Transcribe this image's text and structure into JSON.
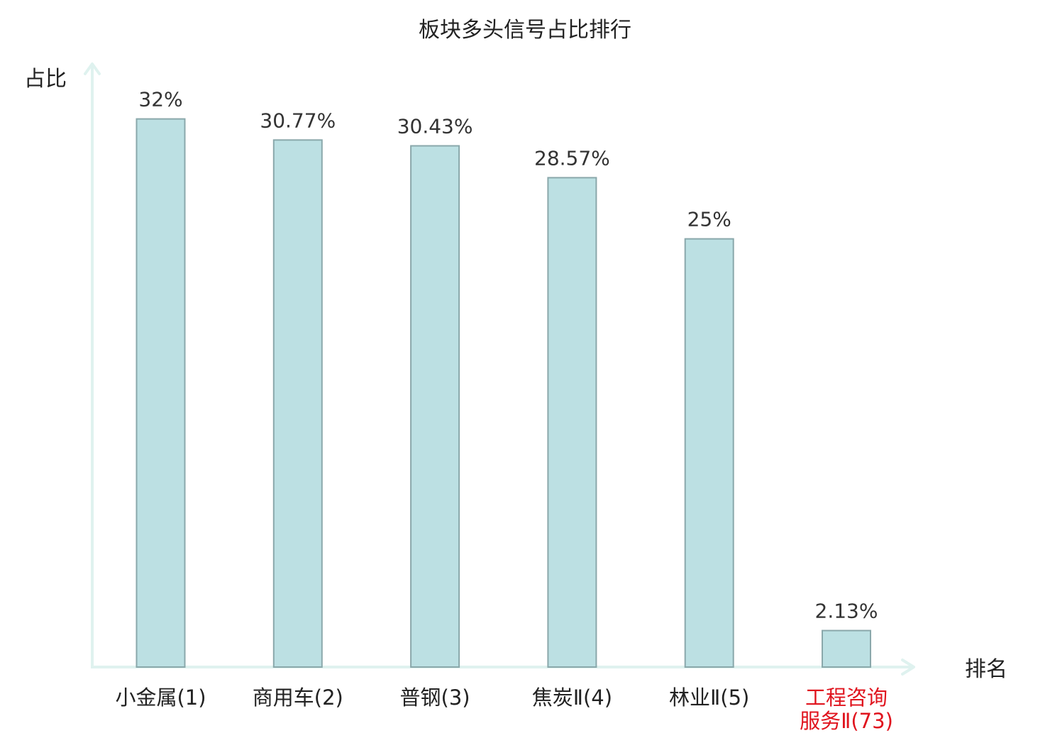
{
  "chart_data": {
    "type": "bar",
    "title": "板块多头信号占比排行",
    "ylabel": "占比",
    "xlabel": "排名",
    "categories": [
      "小金属(1)",
      "商用车(2)",
      "普钢(3)",
      "焦炭Ⅱ(4)",
      "林业Ⅱ(5)",
      "工程咨询服务Ⅱ(73)"
    ],
    "category_lines": [
      [
        "小金属(1)"
      ],
      [
        "商用车(2)"
      ],
      [
        "普钢(3)"
      ],
      [
        "焦炭Ⅱ(4)"
      ],
      [
        "林业Ⅱ(5)"
      ],
      [
        "工程咨询",
        "服务Ⅱ(73)"
      ]
    ],
    "values": [
      32,
      30.77,
      30.43,
      28.57,
      25,
      2.13
    ],
    "value_labels": [
      "32%",
      "30.77%",
      "30.43%",
      "28.57%",
      "25%",
      "2.13%"
    ],
    "highlight_index": 5,
    "ylim": [
      0,
      34.8
    ],
    "grid": false,
    "colors": {
      "bar_fill": "#bce0e3",
      "bar_stroke": "#8aa8ab",
      "axis": "#dff2ef",
      "highlight_text": "#e0141e"
    }
  }
}
